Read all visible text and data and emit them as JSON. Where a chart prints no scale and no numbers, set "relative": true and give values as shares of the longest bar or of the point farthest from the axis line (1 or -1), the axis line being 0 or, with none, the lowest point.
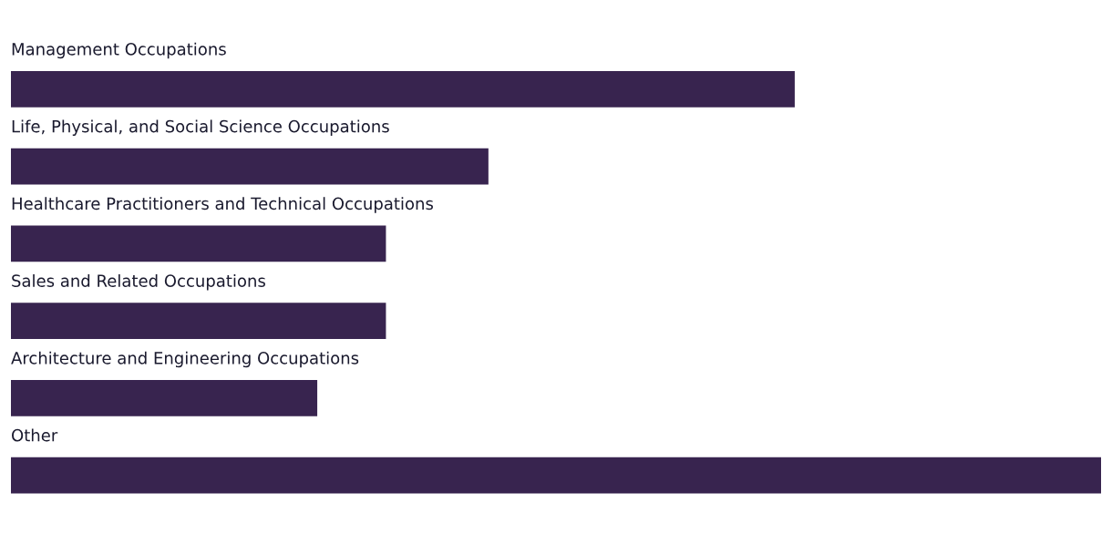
{
  "chart_data": {
    "type": "bar",
    "orientation": "horizontal",
    "relative": true,
    "categories": [
      "Management Occupations",
      "Life, Physical, and Social Science Occupations",
      "Healthcare Practitioners and Technical Occupations",
      "Sales and Related Occupations",
      "Architecture and Engineering Occupations",
      "Other"
    ],
    "values": [
      0.719,
      0.438,
      0.344,
      0.344,
      0.281,
      1
    ],
    "color": "#38244f"
  }
}
